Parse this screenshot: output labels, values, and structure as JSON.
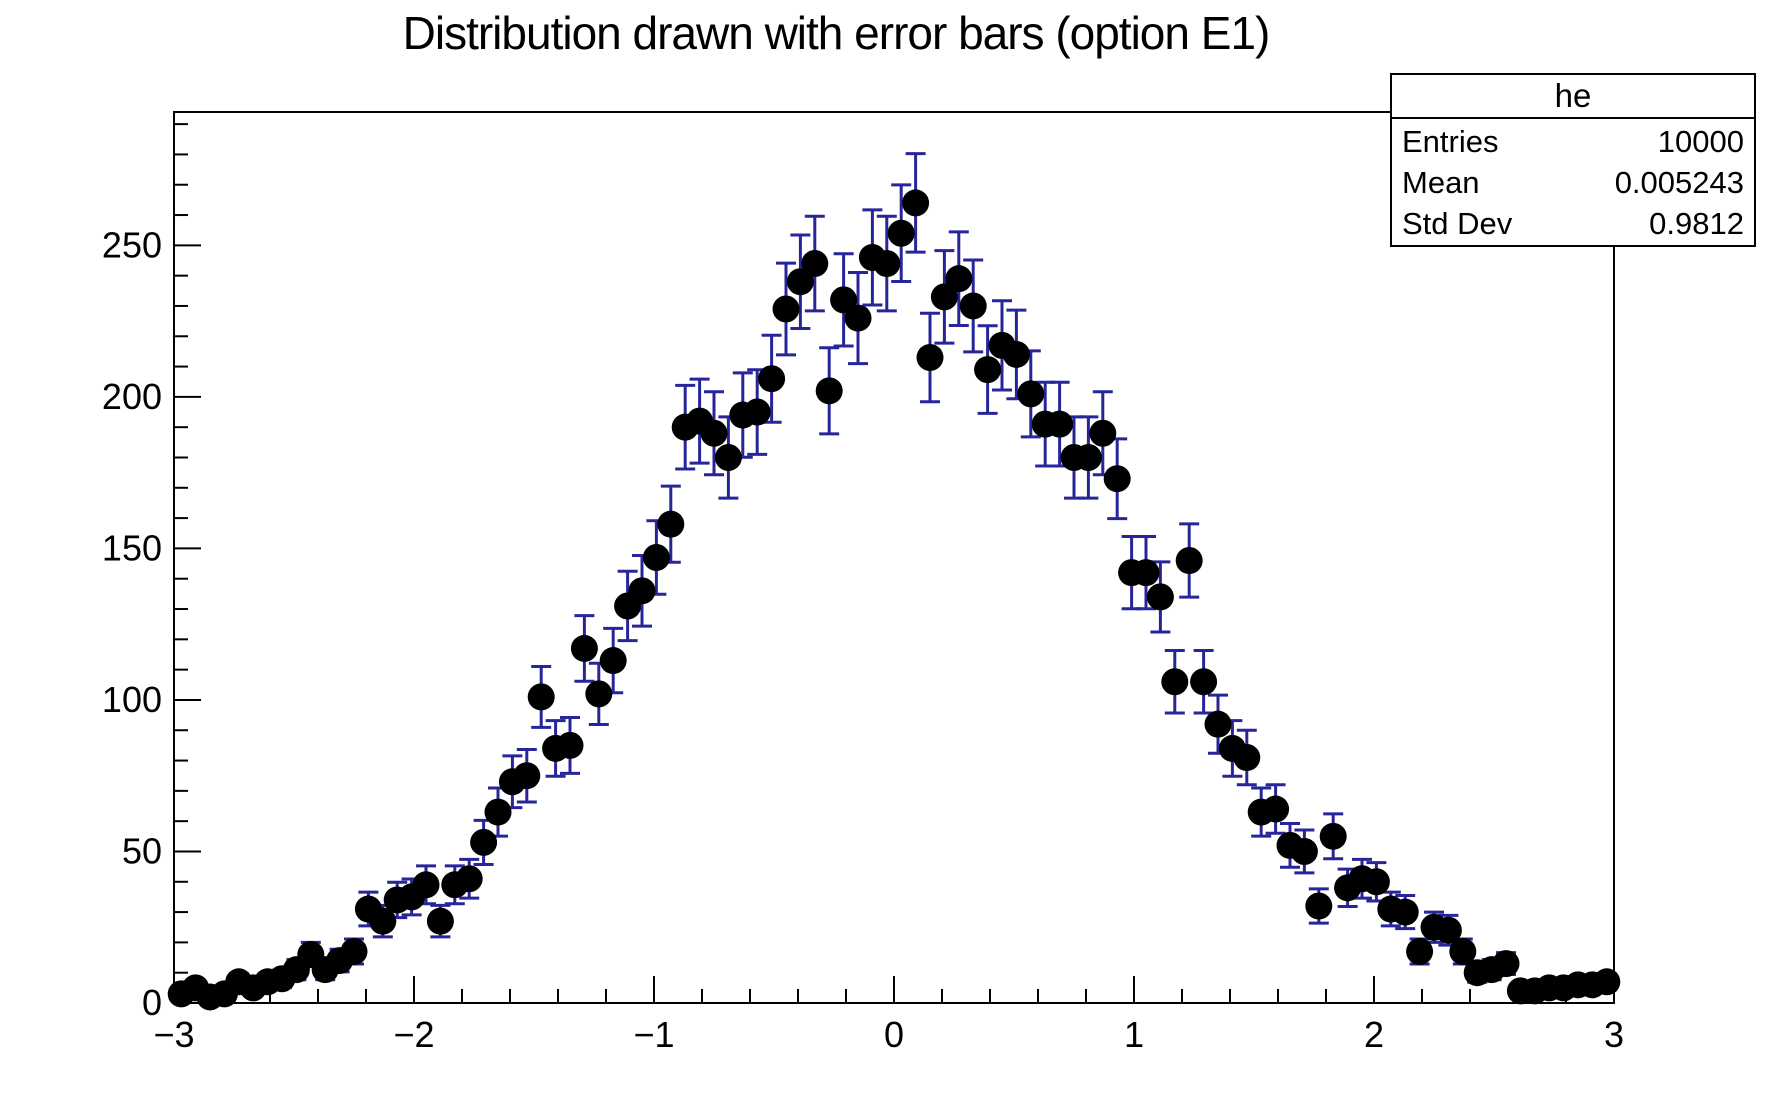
{
  "chart_title": "Distribution drawn with error bars (option E1)",
  "stats_box": {
    "title": "he",
    "rows": [
      {
        "label": "Entries",
        "value": "10000"
      },
      {
        "label": "Mean",
        "value": "0.005243"
      },
      {
        "label": "Std Dev",
        "value": "0.9812"
      }
    ]
  },
  "colors": {
    "background": "#ffffff",
    "marker": "#000000",
    "error_bar": "#26269a",
    "axis": "#000000",
    "text": "#000000"
  },
  "chart_data": {
    "type": "scatter",
    "subtype": "histogram-with-error-bars-ROOT-option-E1",
    "title": "Distribution drawn with error bars (option E1)",
    "xlabel": "",
    "ylabel": "",
    "xlim": [
      -3,
      3
    ],
    "ylim": [
      0,
      294
    ],
    "grid": false,
    "legend_position": "none",
    "x_tick_labels": [
      "−3",
      "−2",
      "−1",
      "0",
      "1",
      "2",
      "3"
    ],
    "x_major_ticks": [
      -3,
      -2,
      -1,
      0,
      1,
      2,
      3
    ],
    "x_minor_step": 0.2,
    "y_tick_labels": [
      "0",
      "50",
      "100",
      "150",
      "200",
      "250"
    ],
    "y_major_ticks": [
      0,
      50,
      100,
      150,
      200,
      250
    ],
    "y_minor_step": 10,
    "n_bins": 100,
    "bin_width": 0.06,
    "error_model": "y_error = sqrt(y), x_error = half bin width (0.03)",
    "marker_style": "filled-circle",
    "x": [
      -2.97,
      -2.91,
      -2.85,
      -2.79,
      -2.73,
      -2.67,
      -2.61,
      -2.55,
      -2.49,
      -2.43,
      -2.37,
      -2.31,
      -2.25,
      -2.19,
      -2.13,
      -2.07,
      -2.01,
      -1.95,
      -1.89,
      -1.83,
      -1.77,
      -1.71,
      -1.65,
      -1.59,
      -1.53,
      -1.47,
      -1.41,
      -1.35,
      -1.29,
      -1.23,
      -1.17,
      -1.11,
      -1.05,
      -0.99,
      -0.93,
      -0.87,
      -0.81,
      -0.75,
      -0.69,
      -0.63,
      -0.57,
      -0.51,
      -0.45,
      -0.39,
      -0.33,
      -0.27,
      -0.21,
      -0.15,
      -0.09,
      -0.03,
      0.03,
      0.09,
      0.15,
      0.21,
      0.27,
      0.33,
      0.39,
      0.45,
      0.51,
      0.57,
      0.63,
      0.69,
      0.75,
      0.81,
      0.87,
      0.93,
      0.99,
      1.05,
      1.11,
      1.17,
      1.23,
      1.29,
      1.35,
      1.41,
      1.47,
      1.53,
      1.59,
      1.65,
      1.71,
      1.77,
      1.83,
      1.89,
      1.95,
      2.01,
      2.07,
      2.13,
      2.19,
      2.25,
      2.31,
      2.37,
      2.43,
      2.49,
      2.55,
      2.61,
      2.67,
      2.73,
      2.79,
      2.85,
      2.91,
      2.97
    ],
    "y": [
      3,
      5,
      2,
      3,
      7,
      5,
      7,
      8,
      11,
      16,
      11,
      14,
      17,
      31,
      27,
      34,
      35,
      39,
      27,
      39,
      41,
      53,
      63,
      73,
      75,
      101,
      84,
      85,
      117,
      102,
      113,
      131,
      136,
      147,
      158,
      190,
      192,
      188,
      180,
      194,
      195,
      206,
      229,
      238,
      244,
      202,
      232,
      226,
      246,
      244,
      254,
      264,
      213,
      233,
      239,
      230,
      209,
      217,
      214,
      201,
      191,
      191,
      180,
      180,
      188,
      173,
      142,
      142,
      134,
      106,
      146,
      106,
      92,
      84,
      81,
      63,
      64,
      52,
      50,
      32,
      55,
      38,
      41,
      40,
      31,
      30,
      17,
      25,
      24,
      17,
      10,
      11,
      13,
      4,
      4,
      5,
      5,
      6,
      6,
      7
    ]
  }
}
